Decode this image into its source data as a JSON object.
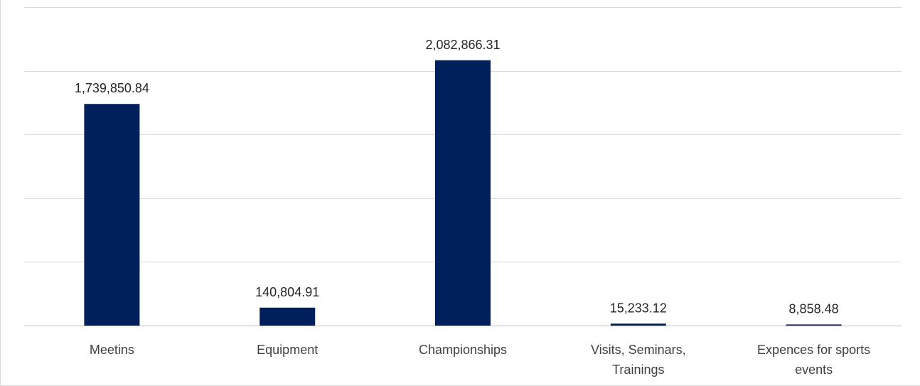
{
  "chart_data": {
    "type": "bar",
    "categories": [
      [
        "Meetins"
      ],
      [
        "Equipment"
      ],
      [
        "Championships"
      ],
      [
        "Visits, Seminars,",
        "Trainings"
      ],
      [
        "Expences for sports",
        "events"
      ]
    ],
    "values": [
      1739850.84,
      140804.91,
      2082866.31,
      15233.12,
      8858.48
    ],
    "data_labels": [
      "1,739,850.84",
      "140,804.91",
      "2,082,866.31",
      "15,233.12",
      "8,858.48"
    ],
    "ylim": [
      0,
      2500000
    ],
    "gridline_step": 500000,
    "grid": true,
    "bar_color": "#00205b",
    "title": "",
    "xlabel": "",
    "ylabel": ""
  }
}
